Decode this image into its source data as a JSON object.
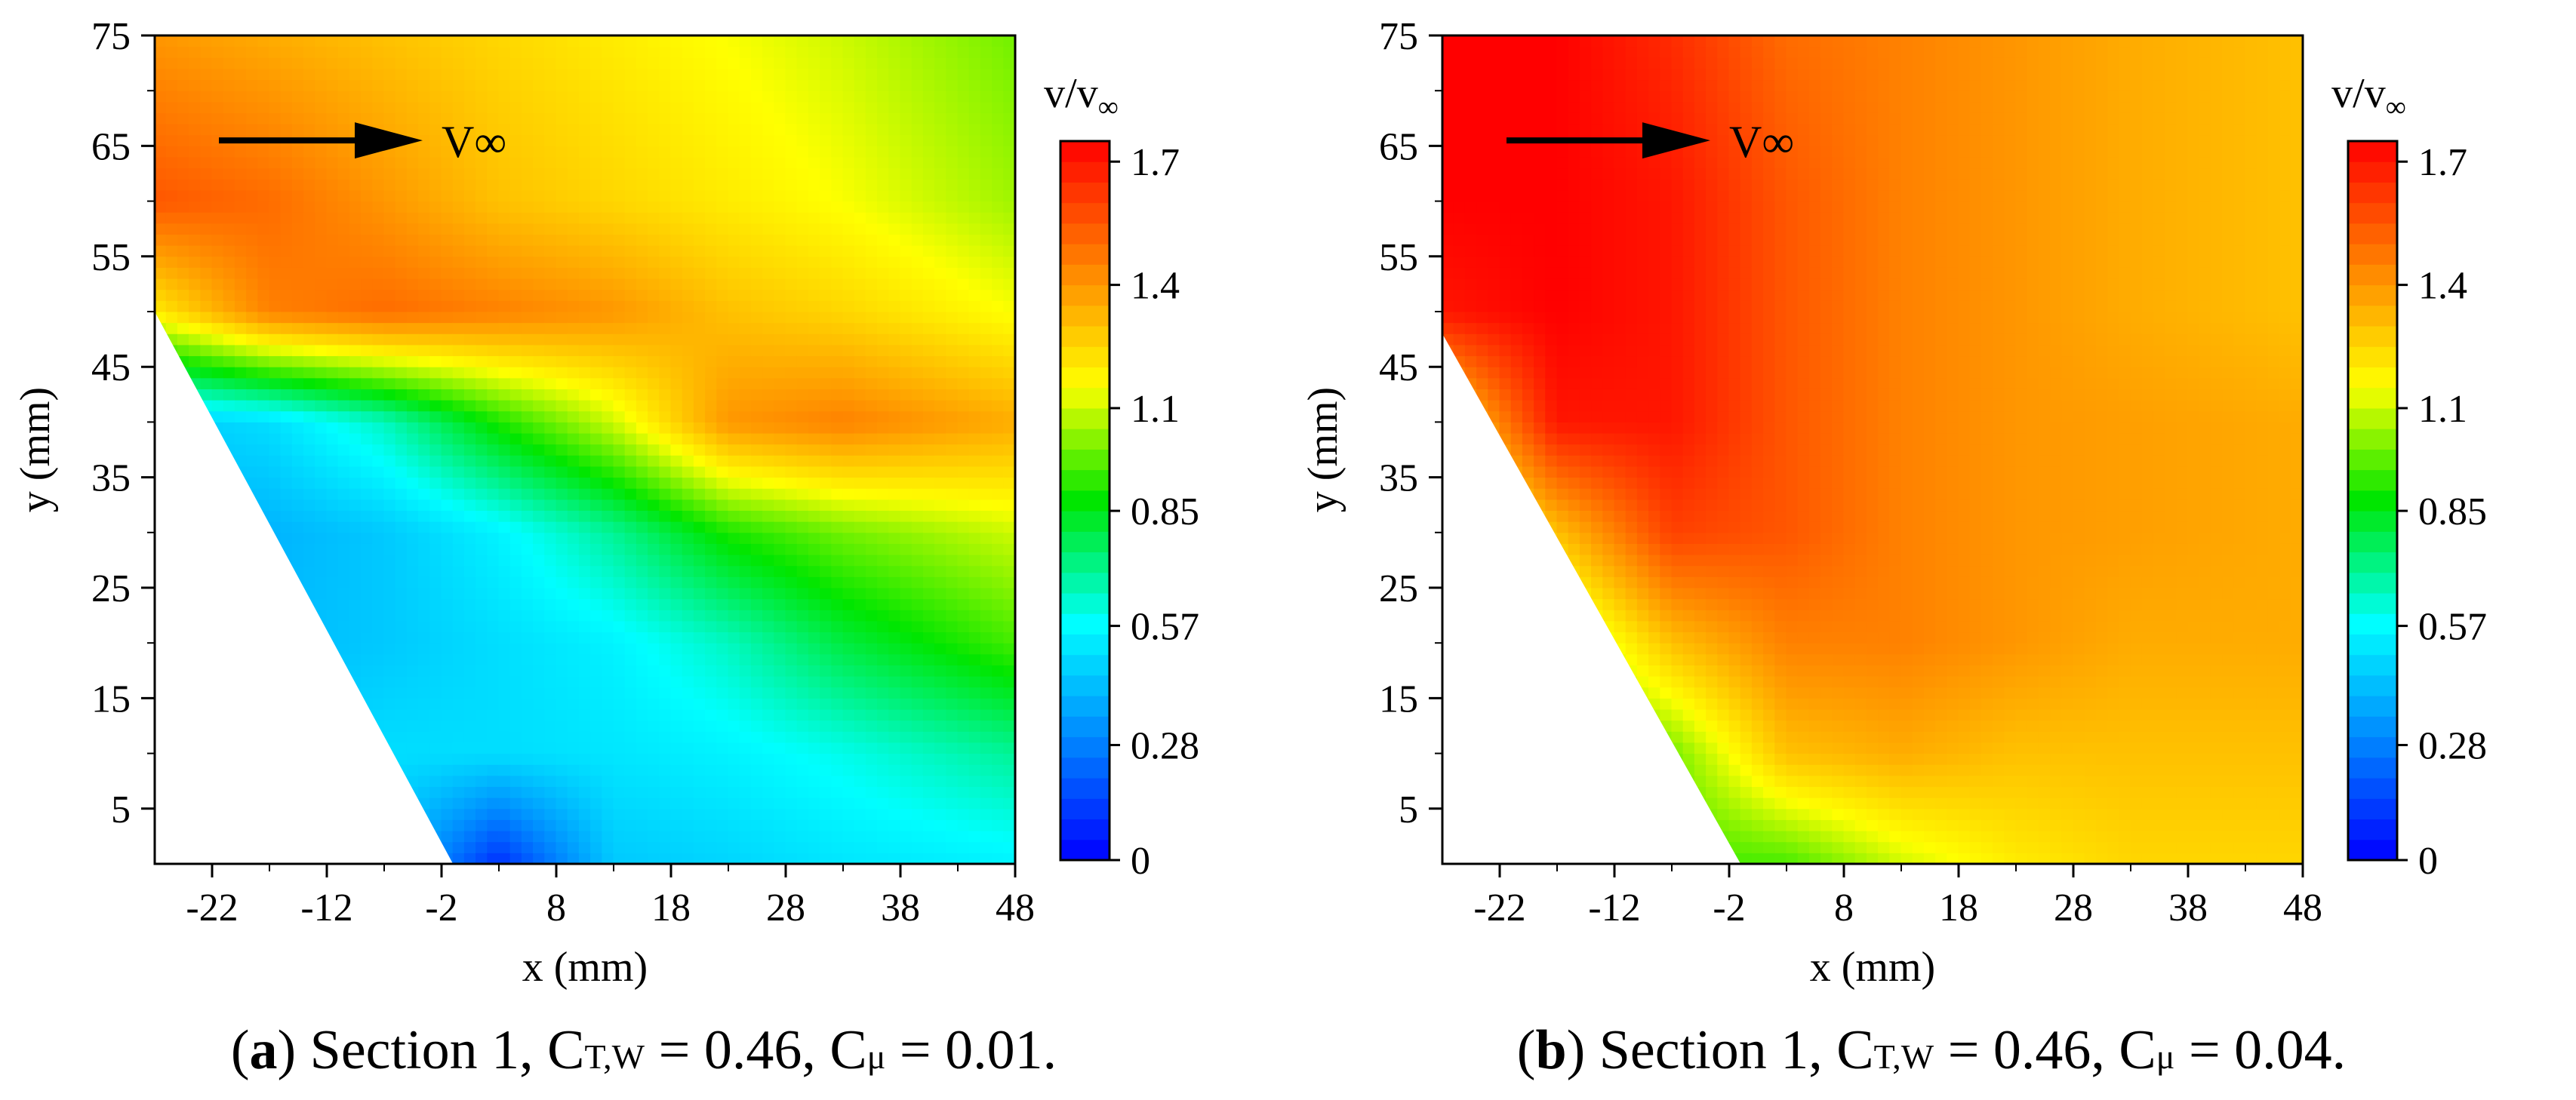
{
  "chart_data": [
    {
      "type": "heatmap",
      "panel": "a",
      "xlabel": "x (mm)",
      "ylabel": "y (mm)",
      "x_ticks": [
        -22,
        -12,
        -2,
        8,
        18,
        28,
        38,
        48
      ],
      "y_ticks": [
        5,
        15,
        25,
        35,
        45,
        55,
        65,
        75
      ],
      "xlim": [
        -27,
        48
      ],
      "ylim": [
        0,
        75
      ],
      "colorbar": {
        "label": "v/v",
        "label_sub": "∞",
        "ticks": [
          0,
          0.28,
          0.57,
          0.85,
          1.1,
          1.4,
          1.7
        ],
        "range": [
          0,
          1.75
        ]
      },
      "annotation": {
        "arrow_text": "V∞"
      },
      "field": {
        "grid_x": [
          -27,
          -17,
          -7,
          3,
          13,
          23,
          33,
          48
        ],
        "grid_y": [
          0,
          10,
          20,
          30,
          40,
          50,
          60,
          75
        ],
        "values": [
          [
            0.45,
            0.45,
            0.45,
            0.1,
            0.45,
            0.48,
            0.52,
            0.55
          ],
          [
            0.45,
            0.45,
            0.5,
            0.5,
            0.52,
            0.55,
            0.6,
            0.7
          ],
          [
            0.4,
            0.42,
            0.45,
            0.5,
            0.55,
            0.65,
            0.8,
            0.95
          ],
          [
            0.4,
            0.4,
            0.45,
            0.55,
            0.7,
            0.9,
            1.0,
            1.1
          ],
          [
            0.45,
            0.5,
            0.65,
            0.9,
            1.1,
            1.4,
            1.45,
            1.35
          ],
          [
            1.2,
            1.45,
            1.5,
            1.45,
            1.4,
            1.3,
            1.25,
            1.15
          ],
          [
            1.55,
            1.5,
            1.4,
            1.3,
            1.25,
            1.2,
            1.15,
            1.05
          ],
          [
            1.4,
            1.35,
            1.3,
            1.25,
            1.2,
            1.15,
            1.1,
            1.0
          ]
        ]
      },
      "blank_region": {
        "vertices": [
          [
            -27,
            0
          ],
          [
            -1,
            0
          ],
          [
            -27,
            50
          ]
        ]
      },
      "caption": {
        "letter": "a",
        "pre": ") Section 1, C",
        "sub": "T,W",
        "mid": " = 0.46, C",
        "sub2": "μ",
        "post": " = 0.01."
      }
    },
    {
      "type": "heatmap",
      "panel": "b",
      "xlabel": "x (mm)",
      "ylabel": "y (mm)",
      "x_ticks": [
        -22,
        -12,
        -2,
        8,
        18,
        28,
        38,
        48
      ],
      "y_ticks": [
        5,
        15,
        25,
        35,
        45,
        55,
        65,
        75
      ],
      "xlim": [
        -27,
        48
      ],
      "ylim": [
        0,
        75
      ],
      "colorbar": {
        "label": "v/v",
        "label_sub": "∞",
        "ticks": [
          0,
          0.28,
          0.57,
          0.85,
          1.1,
          1.4,
          1.7
        ],
        "range": [
          0,
          1.75
        ]
      },
      "annotation": {
        "arrow_text": "V∞"
      },
      "field": {
        "grid_x": [
          -27,
          -17,
          -7,
          3,
          13,
          23,
          33,
          48
        ],
        "grid_y": [
          0,
          10,
          20,
          30,
          40,
          50,
          60,
          75
        ],
        "values": [
          [
            0.9,
            0.9,
            0.95,
            0.95,
            1.1,
            1.2,
            1.25,
            1.25
          ],
          [
            0.9,
            0.95,
            1.0,
            1.3,
            1.35,
            1.3,
            1.3,
            1.3
          ],
          [
            0.9,
            1.0,
            1.3,
            1.45,
            1.45,
            1.4,
            1.35,
            1.35
          ],
          [
            1.0,
            1.3,
            1.6,
            1.55,
            1.45,
            1.4,
            1.38,
            1.35
          ],
          [
            1.2,
            1.7,
            1.7,
            1.55,
            1.45,
            1.4,
            1.38,
            1.35
          ],
          [
            1.7,
            1.75,
            1.7,
            1.55,
            1.45,
            1.4,
            1.35,
            1.3
          ],
          [
            1.75,
            1.75,
            1.7,
            1.55,
            1.45,
            1.4,
            1.35,
            1.3
          ],
          [
            1.75,
            1.75,
            1.65,
            1.5,
            1.45,
            1.4,
            1.35,
            1.3
          ]
        ]
      },
      "blank_region": {
        "vertices": [
          [
            -27,
            0
          ],
          [
            -1,
            0
          ],
          [
            -27,
            48
          ]
        ]
      },
      "caption": {
        "letter": "b",
        "pre": ") Section 1, C",
        "sub": "T,W",
        "mid": " = 0.46, C",
        "sub2": "μ",
        "post": " = 0.04."
      }
    }
  ]
}
